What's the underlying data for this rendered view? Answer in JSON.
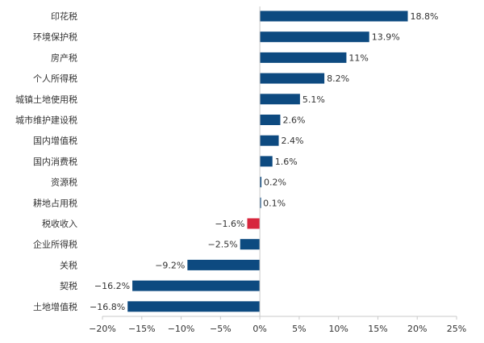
{
  "chart_data": {
    "type": "bar",
    "orientation": "horizontal",
    "title": "",
    "xlabel": "",
    "ylabel": "",
    "categories": [
      "印花税",
      "环境保护税",
      "房产税",
      "个人所得税",
      "城镇土地使用税",
      "城市维护建设税",
      "国内增值税",
      "国内消费税",
      "资源税",
      "耕地占用税",
      "税收收入",
      "企业所得税",
      "关税",
      "契税",
      "土地增值税"
    ],
    "values": [
      18.8,
      13.9,
      11,
      8.2,
      5.1,
      2.6,
      2.4,
      1.6,
      0.2,
      0.1,
      -1.6,
      -2.5,
      -9.2,
      -16.2,
      -16.8
    ],
    "value_labels": [
      "18.8%",
      "13.9%",
      "11%",
      "8.2%",
      "5.1%",
      "2.6%",
      "2.4%",
      "1.6%",
      "0.2%",
      "0.1%",
      "−1.6%",
      "−2.5%",
      "−9.2%",
      "−16.2%",
      "−16.8%"
    ],
    "xlim": [
      -20,
      25
    ],
    "xticks": [
      -20,
      -15,
      -10,
      -5,
      0,
      5,
      10,
      15,
      20,
      25
    ],
    "xtick_labels": [
      "−20%",
      "−15%",
      "−10%",
      "−5%",
      "0%",
      "5%",
      "10%",
      "15%",
      "20%",
      "25%"
    ],
    "grid": false,
    "legend": "none",
    "colors": {
      "bar": "#0d4a80",
      "highlight": "#d7263d",
      "highlight_category": "税收收入"
    }
  }
}
